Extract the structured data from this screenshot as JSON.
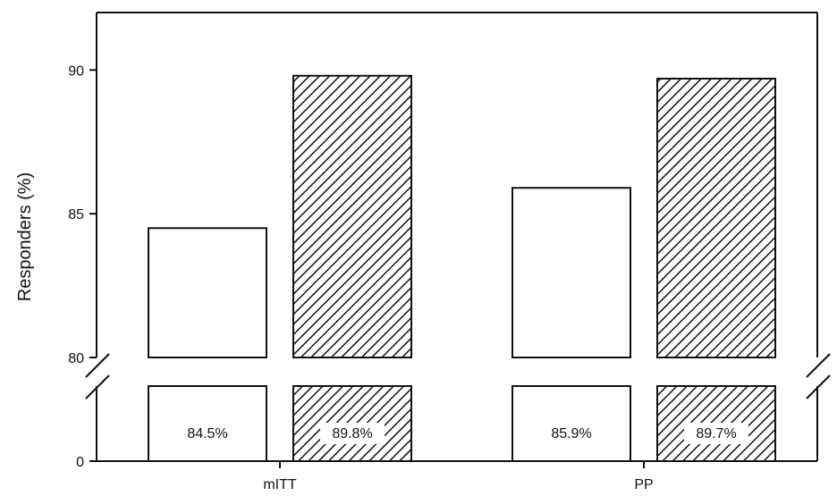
{
  "chart_data": {
    "type": "bar",
    "ylabel": "Responders (%)",
    "categories": [
      "mITT",
      "PP"
    ],
    "series": [
      {
        "values": [
          84.5,
          85.9
        ],
        "fill": "white"
      },
      {
        "values": [
          89.8,
          89.7
        ],
        "fill": "hatched"
      }
    ],
    "value_labels": [
      [
        "84.5%",
        "85.9%"
      ],
      [
        "89.8%",
        "89.7%"
      ]
    ],
    "y_ticks": [
      "0",
      "80",
      "85",
      "90"
    ],
    "ylim_upper": [
      80,
      92
    ],
    "ylim_lower": [
      0,
      80
    ],
    "axis_break": true,
    "grid": false,
    "colors": {
      "axis": "#111111",
      "bar_stroke": "#111111",
      "background": "#ffffff"
    }
  }
}
